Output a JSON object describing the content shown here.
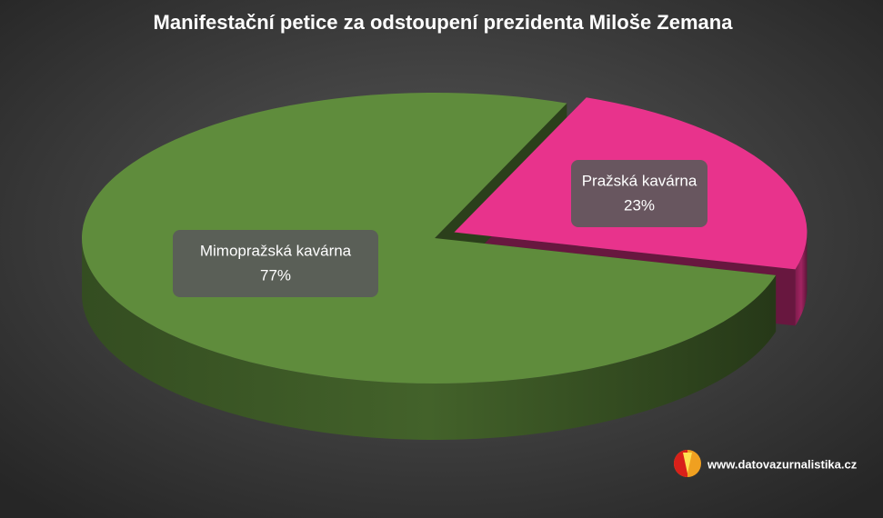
{
  "chart_data": {
    "type": "pie",
    "title": "Manifestační petice za odstoupení prezidenta Miloše Zemana",
    "categories": [
      "Pražská kavárna",
      "Mimopražská kavárna"
    ],
    "values": [
      23,
      77
    ],
    "value_labels": [
      "23%",
      "77%"
    ],
    "colors": [
      "#e8338c",
      "#5f8c3c"
    ],
    "source": "www.datovazurnalistika.cz"
  }
}
